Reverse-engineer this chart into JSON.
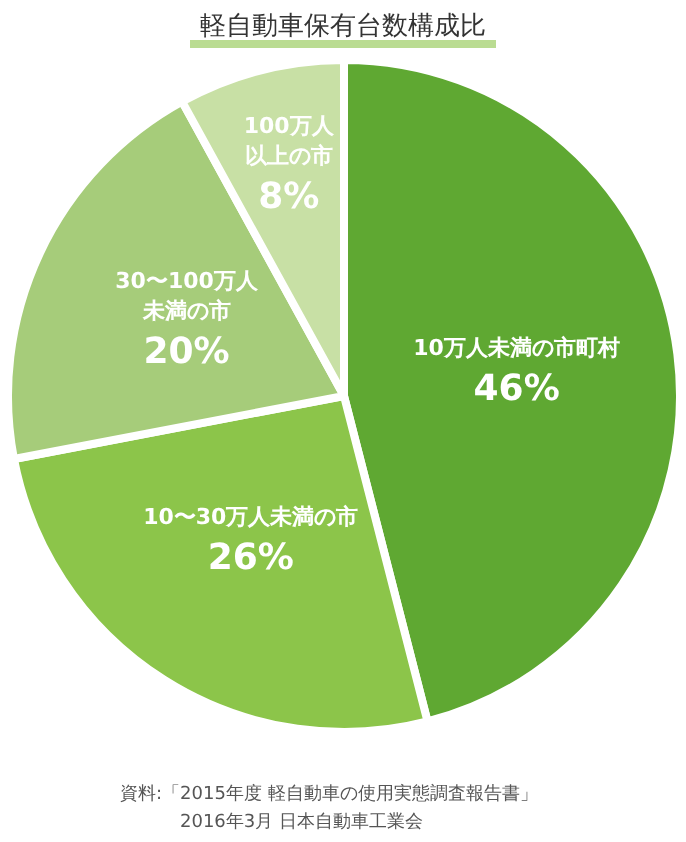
{
  "chart_data": {
    "type": "pie",
    "title": "軽自動車保有台数構成比",
    "categories": [
      "10万人未満の市町村",
      "10〜30万人未満の市",
      "30〜100万人未満の市",
      "100万人以上の市"
    ],
    "values": [
      46,
      26,
      20,
      8
    ],
    "value_labels": [
      "46%",
      "26%",
      "20%",
      "8%"
    ],
    "colors": [
      "#5fa832",
      "#8cc54a",
      "#a6cc7a",
      "#c8e0a5"
    ],
    "legend": false,
    "annotations": [
      "資料:「2015年度 軽自動車の使用実態調査報告書」",
      "2016年3月 日本自動車工業会"
    ]
  }
}
